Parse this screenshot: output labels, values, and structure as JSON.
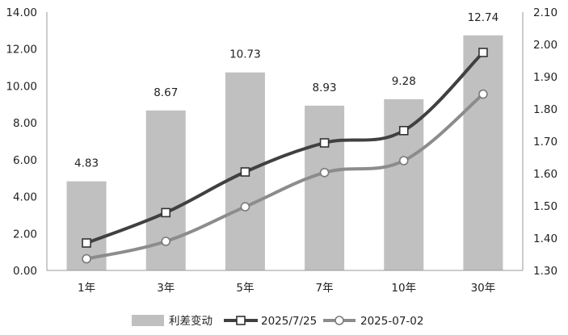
{
  "chart_data": {
    "type": "bar",
    "categories": [
      "1年",
      "3年",
      "5年",
      "7年",
      "10年",
      "30年"
    ],
    "series": [
      {
        "name": "利差变动",
        "type": "bar",
        "axis": "left",
        "values": [
          4.83,
          8.67,
          10.73,
          8.93,
          9.28,
          12.74
        ],
        "data_labels": [
          "4.83",
          "8.67",
          "10.73",
          "8.93",
          "9.28",
          "12.74"
        ],
        "color": "#c0c0c0"
      },
      {
        "name": "2025/7/25",
        "type": "line",
        "axis": "right",
        "values": [
          1.385,
          1.479,
          1.605,
          1.695,
          1.733,
          1.975
        ],
        "marker": "square",
        "color": "#404040"
      },
      {
        "name": "2025-07-02",
        "type": "line",
        "axis": "right",
        "values": [
          1.336,
          1.39,
          1.497,
          1.603,
          1.64,
          1.846
        ],
        "marker": "circle",
        "color": "#8c8c8c"
      }
    ],
    "y_left": {
      "ylim": [
        0,
        14
      ],
      "ticks": [
        "0.00",
        "2.00",
        "4.00",
        "6.00",
        "8.00",
        "10.00",
        "12.00",
        "14.00"
      ]
    },
    "y_right": {
      "ylim": [
        1.3,
        2.1
      ],
      "ticks": [
        "1.30",
        "1.40",
        "1.50",
        "1.60",
        "1.70",
        "1.80",
        "1.90",
        "2.00",
        "2.10"
      ]
    },
    "grid": false,
    "legend_position": "bottom"
  }
}
